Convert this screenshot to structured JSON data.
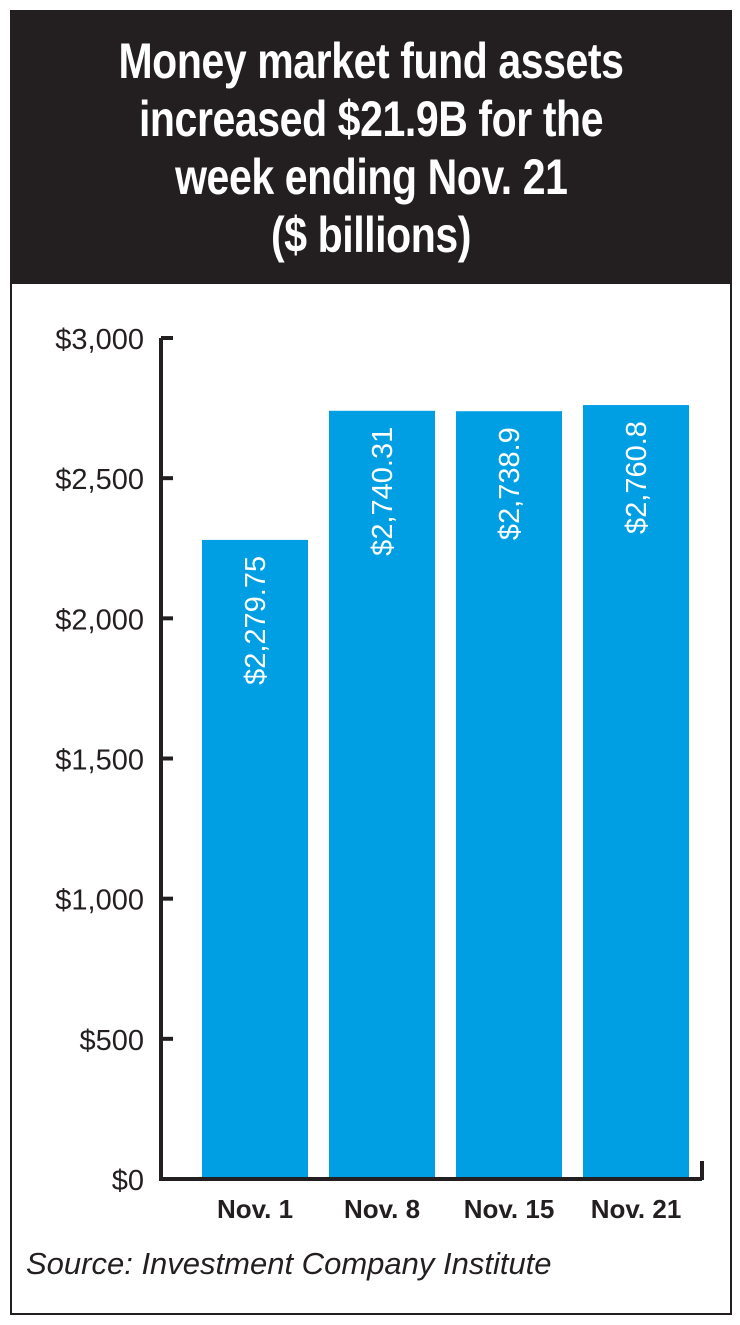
{
  "title_lines": [
    "Money market fund assets",
    "increased $21.9B for the",
    "week ending Nov. 21",
    "($ billions)"
  ],
  "source": "Source: Investment Company Institute",
  "colors": {
    "bar": "#009fe3",
    "title_bg": "#231f20",
    "axis": "#231f20"
  },
  "chart_data": {
    "type": "bar",
    "title": "Money market fund assets increased $21.9B for the week ending Nov. 21 ($ billions)",
    "categories": [
      "Nov. 1",
      "Nov. 8",
      "Nov. 15",
      "Nov. 21"
    ],
    "values": [
      2279.75,
      2740.31,
      2738.9,
      2760.8
    ],
    "value_labels": [
      "$2,279.75",
      "$2,740.31",
      "$2,738.9",
      "$2,760.8"
    ],
    "ylim": [
      0,
      3000
    ],
    "yticks": [
      0,
      500,
      1000,
      1500,
      2000,
      2500,
      3000
    ],
    "ytick_labels": [
      "$0",
      "$500",
      "$1,000",
      "$1,500",
      "$2,000",
      "$2,500",
      "$3,000"
    ],
    "xlabel": "",
    "ylabel": "",
    "grid": false,
    "legend": "none"
  }
}
